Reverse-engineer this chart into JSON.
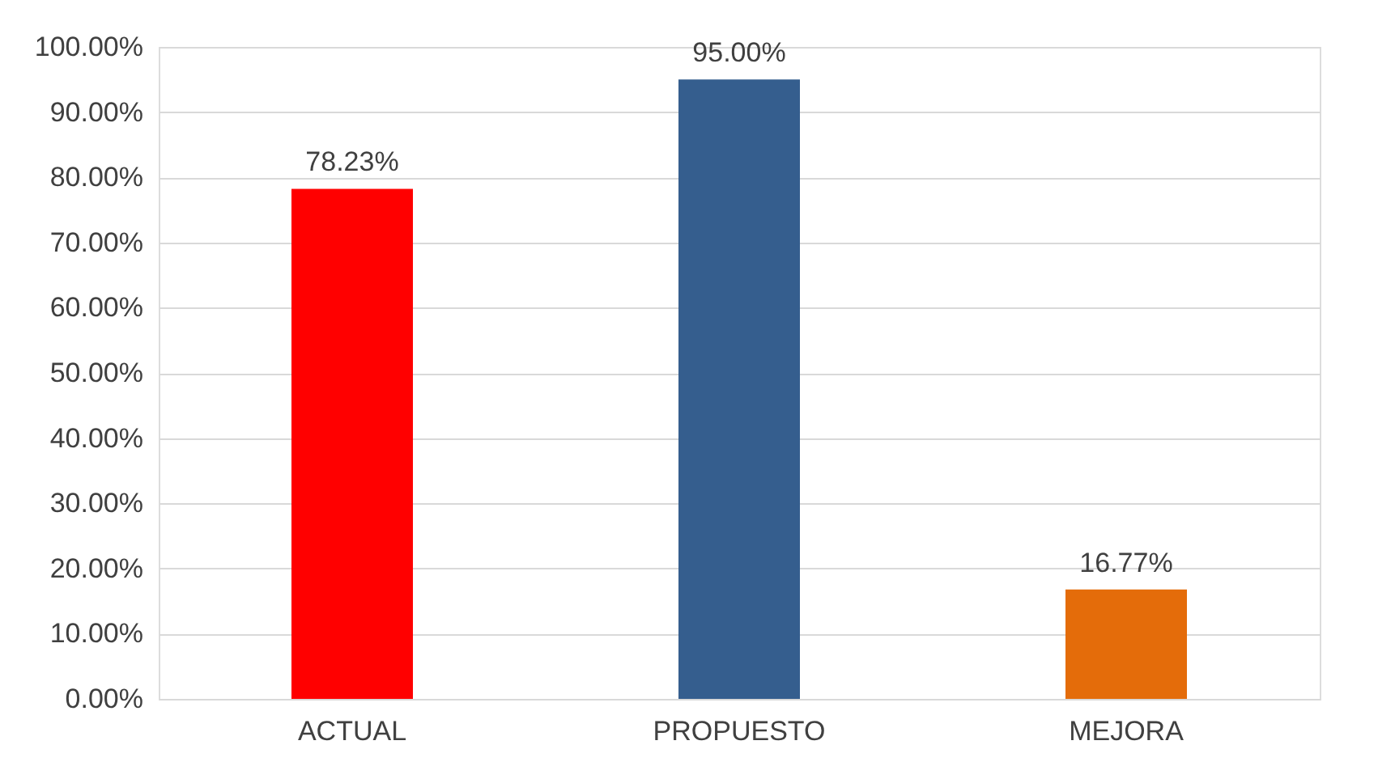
{
  "chart_data": {
    "type": "bar",
    "categories": [
      "ACTUAL",
      "PROPUESTO",
      "MEJORA"
    ],
    "values": [
      78.23,
      95.0,
      16.77
    ],
    "colors": [
      "#ff0000",
      "#355e8e",
      "#e46c0a"
    ],
    "value_labels": [
      "78.23%",
      "95.00%",
      "16.77%"
    ],
    "ylim": [
      0,
      100
    ],
    "yticks": [
      {
        "value": 0,
        "label": "0.00%"
      },
      {
        "value": 10,
        "label": "10.00%"
      },
      {
        "value": 20,
        "label": "20.00%"
      },
      {
        "value": 30,
        "label": "30.00%"
      },
      {
        "value": 40,
        "label": "40.00%"
      },
      {
        "value": 50,
        "label": "50.00%"
      },
      {
        "value": 60,
        "label": "60.00%"
      },
      {
        "value": 70,
        "label": "70.00%"
      },
      {
        "value": 80,
        "label": "80.00%"
      },
      {
        "value": 90,
        "label": "90.00%"
      },
      {
        "value": 100,
        "label": "100.00%"
      }
    ],
    "grid": "y"
  }
}
